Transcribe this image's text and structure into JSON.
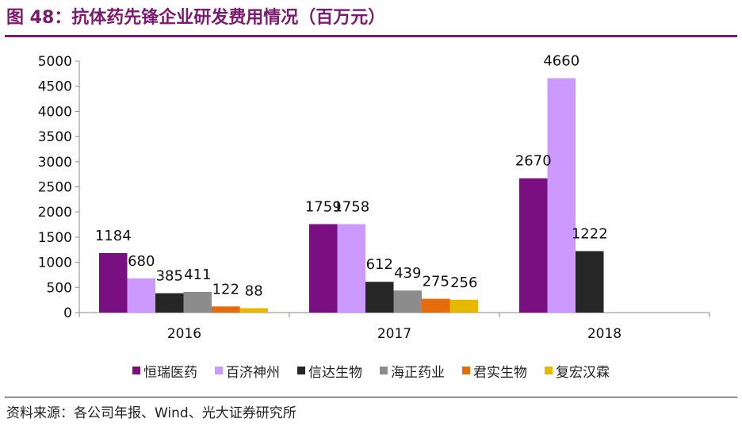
{
  "header": {
    "title": "图 48：抗体药先锋企业研发费用情况（百万元）",
    "accent_color": "#7B1A6E"
  },
  "footer": {
    "source": "资料来源：各公司年报、Wind、光大证券研究所"
  },
  "chart_data": {
    "type": "bar",
    "title": "图 48：抗体药先锋企业研发费用情况（百万元）",
    "xlabel": "",
    "ylabel": "",
    "categories": [
      "2016",
      "2017",
      "2018"
    ],
    "ylim": [
      0,
      5000
    ],
    "yticks": [
      0,
      500,
      1000,
      1500,
      2000,
      2500,
      3000,
      3500,
      4000,
      4500,
      5000
    ],
    "grid": false,
    "legend_position": "bottom",
    "series": [
      {
        "name": "恒瑞医药",
        "color": "#7A0F82",
        "values": [
          1184,
          1759,
          2670
        ]
      },
      {
        "name": "百济神州",
        "color": "#CC99FF",
        "values": [
          680,
          1758,
          4660
        ]
      },
      {
        "name": "信达生物",
        "color": "#262626",
        "values": [
          385,
          612,
          1222
        ]
      },
      {
        "name": "海正药业",
        "color": "#8C8C8C",
        "values": [
          411,
          439,
          null
        ]
      },
      {
        "name": "君实生物",
        "color": "#E46C0A",
        "values": [
          122,
          275,
          null
        ]
      },
      {
        "name": "复宏汉霖",
        "color": "#E6B800",
        "values": [
          88,
          256,
          null
        ]
      }
    ]
  }
}
